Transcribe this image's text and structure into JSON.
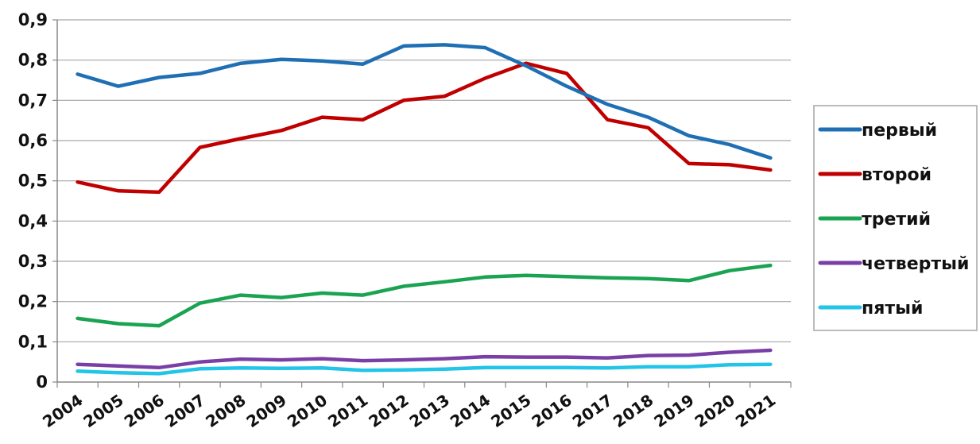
{
  "chart_data": {
    "type": "line",
    "title": "",
    "xlabel": "",
    "ylabel": "",
    "x": [
      "2004",
      "2005",
      "2006",
      "2007",
      "2008",
      "2009",
      "2010",
      "2011",
      "2012",
      "2013",
      "2014",
      "2015",
      "2016",
      "2017",
      "2018",
      "2019",
      "2020",
      "2021"
    ],
    "ylim": [
      0,
      0.9
    ],
    "y_ticks": [
      "0",
      "0,1",
      "0,2",
      "0,3",
      "0,4",
      "0,5",
      "0,6",
      "0,7",
      "0,8",
      "0,9"
    ],
    "grid": "horizontal",
    "legend_position": "right",
    "series": [
      {
        "name": "первый",
        "color": "#1f6fb5",
        "values": [
          0.765,
          0.735,
          0.757,
          0.767,
          0.792,
          0.802,
          0.798,
          0.79,
          0.835,
          0.838,
          0.831,
          0.786,
          0.735,
          0.69,
          0.658,
          0.612,
          0.59,
          0.557
        ]
      },
      {
        "name": "второй",
        "color": "#c00000",
        "values": [
          0.497,
          0.475,
          0.472,
          0.583,
          0.605,
          0.625,
          0.658,
          0.652,
          0.7,
          0.71,
          0.755,
          0.792,
          0.767,
          0.652,
          0.632,
          0.543,
          0.54,
          0.527
        ]
      },
      {
        "name": "третий",
        "color": "#1aa351",
        "values": [
          0.158,
          0.145,
          0.14,
          0.196,
          0.216,
          0.21,
          0.221,
          0.216,
          0.238,
          0.249,
          0.261,
          0.265,
          0.262,
          0.259,
          0.257,
          0.252,
          0.277,
          0.29
        ]
      },
      {
        "name": "четвертый",
        "color": "#7a3fa6",
        "values": [
          0.044,
          0.04,
          0.036,
          0.05,
          0.057,
          0.055,
          0.058,
          0.053,
          0.055,
          0.058,
          0.063,
          0.062,
          0.062,
          0.06,
          0.066,
          0.067,
          0.074,
          0.079
        ]
      },
      {
        "name": "пятый",
        "color": "#22c4e8",
        "values": [
          0.027,
          0.023,
          0.021,
          0.033,
          0.035,
          0.034,
          0.035,
          0.029,
          0.03,
          0.032,
          0.036,
          0.036,
          0.036,
          0.035,
          0.038,
          0.038,
          0.043,
          0.044
        ]
      }
    ]
  }
}
